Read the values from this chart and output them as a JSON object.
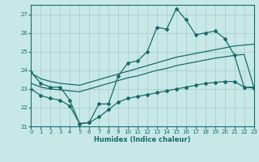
{
  "xlabel": "Humidex (Indice chaleur)",
  "xlim": [
    0,
    23
  ],
  "ylim": [
    21,
    27.5
  ],
  "yticks": [
    21,
    22,
    23,
    24,
    25,
    26,
    27
  ],
  "xticks": [
    0,
    1,
    2,
    3,
    4,
    5,
    6,
    7,
    8,
    9,
    10,
    11,
    12,
    13,
    14,
    15,
    16,
    17,
    18,
    19,
    20,
    21,
    22,
    23
  ],
  "bg_color": "#c8e8e8",
  "grid_color": "#aacece",
  "line_color": "#1a6b6b",
  "line_zigzag": [
    23.9,
    23.3,
    23.1,
    23.1,
    22.4,
    21.15,
    21.2,
    22.2,
    22.2,
    23.7,
    24.4,
    24.5,
    25.0,
    26.3,
    26.2,
    27.3,
    26.7,
    25.9,
    26.0,
    26.1,
    25.7,
    24.8,
    23.1,
    23.1
  ],
  "line_upper": [
    23.85,
    23.55,
    23.4,
    23.3,
    23.25,
    23.2,
    23.35,
    23.5,
    23.65,
    23.8,
    23.95,
    24.1,
    24.25,
    24.4,
    24.55,
    24.7,
    24.8,
    24.9,
    25.0,
    25.1,
    25.2,
    25.3,
    25.35,
    25.4
  ],
  "line_mid": [
    23.3,
    23.1,
    23.0,
    22.95,
    22.9,
    22.85,
    23.0,
    23.15,
    23.3,
    23.45,
    23.6,
    23.7,
    23.85,
    24.0,
    24.1,
    24.25,
    24.35,
    24.45,
    24.55,
    24.65,
    24.72,
    24.8,
    24.85,
    23.1
  ],
  "line_lower": [
    23.0,
    22.65,
    22.5,
    22.4,
    22.1,
    21.15,
    21.2,
    21.5,
    21.9,
    22.3,
    22.5,
    22.6,
    22.7,
    22.8,
    22.9,
    23.0,
    23.1,
    23.2,
    23.3,
    23.35,
    23.4,
    23.4,
    23.1,
    23.05
  ]
}
